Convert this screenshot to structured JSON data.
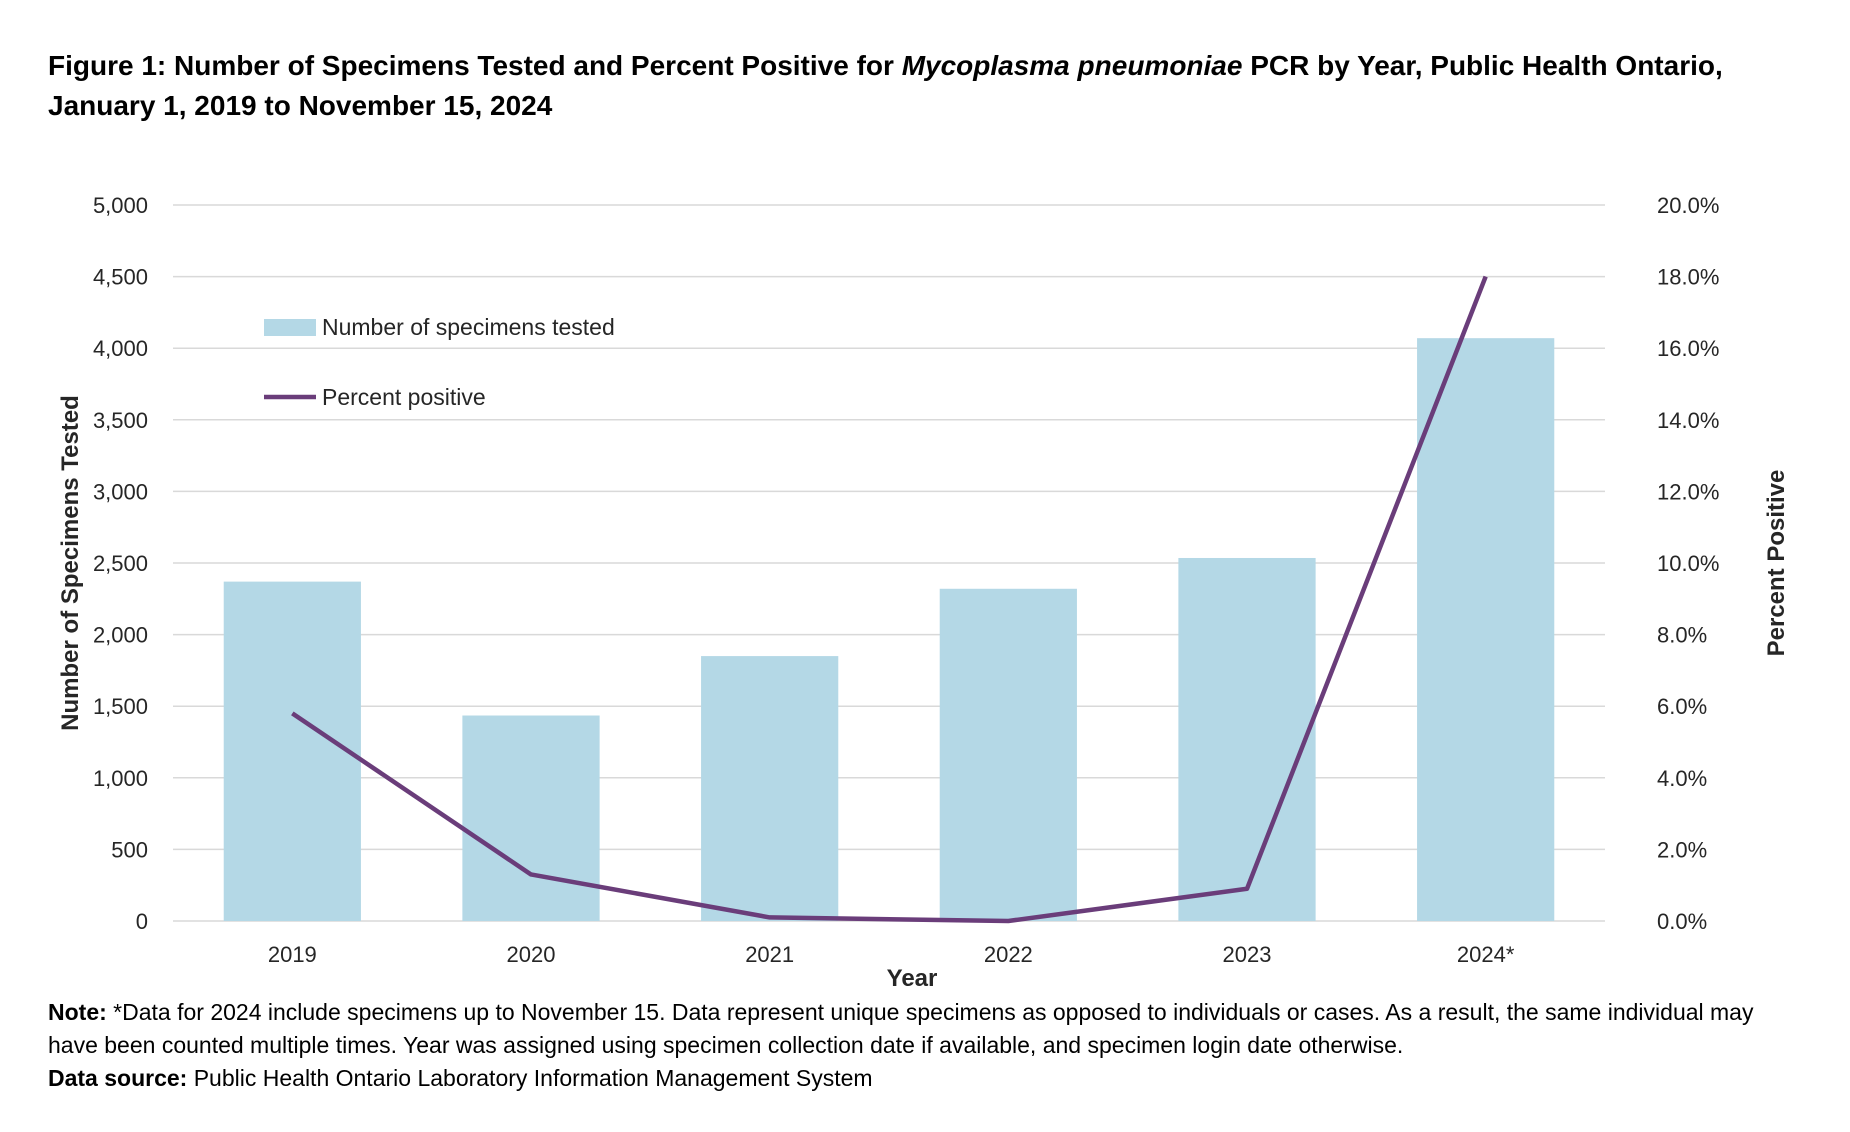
{
  "figure": {
    "title_prefix": "Figure 1: Number of Specimens Tested and Percent Positive for ",
    "title_italic": "Mycoplasma pneumoniae",
    "title_suffix": " PCR by Year, Public Health Ontario,",
    "title_line2": "January 1, 2019 to November 15, 2024"
  },
  "chart_data": {
    "type": "bar",
    "categories": [
      "2019",
      "2020",
      "2021",
      "2022",
      "2023",
      "2024*"
    ],
    "series": [
      {
        "name": "Number of specimens tested",
        "type": "bar",
        "axis": "left",
        "color": "#b4d8e6",
        "values": [
          2370,
          1435,
          1850,
          2320,
          2535,
          4070
        ]
      },
      {
        "name": "Percent positive",
        "type": "line",
        "axis": "right",
        "color": "#6a3d7a",
        "values": [
          5.8,
          1.3,
          0.1,
          0.0,
          0.9,
          18.0
        ]
      }
    ],
    "xlabel": "Year",
    "ylabel": "Number of Specimens Tested",
    "y2label": "Percent Positive",
    "ylim": [
      0,
      5000
    ],
    "y2lim": [
      0,
      20
    ],
    "yticks": [
      "0",
      "500",
      "1,000",
      "1,500",
      "2,000",
      "2,500",
      "3,000",
      "3,500",
      "4,000",
      "4,500",
      "5,000"
    ],
    "y2ticks": [
      "0.0%",
      "2.0%",
      "4.0%",
      "6.0%",
      "8.0%",
      "10.0%",
      "12.0%",
      "14.0%",
      "16.0%",
      "18.0%",
      "20.0%"
    ],
    "grid": true,
    "legend_position": "top-left"
  },
  "notes": {
    "note_label": "Note:",
    "note_text": " *Data for 2024 include specimens up to November 15. Data represent unique specimens as opposed to individuals or cases. As a result, the same individual may have been counted multiple times. Year was assigned using specimen collection date if available, and specimen login date otherwise.",
    "source_label": "Data source:",
    "source_text": " Public Health Ontario Laboratory Information Management System"
  }
}
